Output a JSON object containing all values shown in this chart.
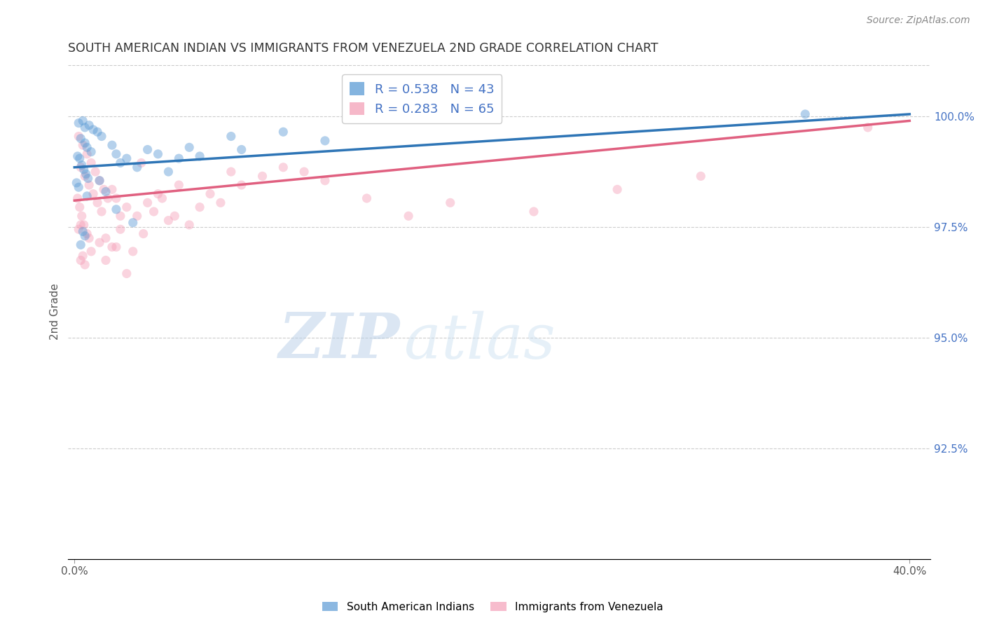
{
  "title": "SOUTH AMERICAN INDIAN VS IMMIGRANTS FROM VENEZUELA 2ND GRADE CORRELATION CHART",
  "source_text": "Source: ZipAtlas.com",
  "ylabel": "2nd Grade",
  "ymin": 90.0,
  "ymax": 101.2,
  "xmin": -0.3,
  "xmax": 41.0,
  "yticks": [
    92.5,
    95.0,
    97.5,
    100.0
  ],
  "ytick_labels": [
    "92.5%",
    "95.0%",
    "97.5%",
    "100.0%"
  ],
  "legend_entries": [
    {
      "label": "R = 0.538   N = 43",
      "color": "#6aa8d8"
    },
    {
      "label": "R = 0.283   N = 65",
      "color": "#f0a0b8"
    }
  ],
  "legend_labels_bottom": [
    "South American Indians",
    "Immigrants from Venezuela"
  ],
  "blue_scatter": [
    [
      0.2,
      99.85
    ],
    [
      0.4,
      99.9
    ],
    [
      0.5,
      99.75
    ],
    [
      0.7,
      99.8
    ],
    [
      0.9,
      99.7
    ],
    [
      1.1,
      99.65
    ],
    [
      1.3,
      99.55
    ],
    [
      0.3,
      99.5
    ],
    [
      0.5,
      99.4
    ],
    [
      0.6,
      99.3
    ],
    [
      0.8,
      99.2
    ],
    [
      0.15,
      99.1
    ],
    [
      0.25,
      99.05
    ],
    [
      0.35,
      98.9
    ],
    [
      0.45,
      98.8
    ],
    [
      0.55,
      98.7
    ],
    [
      0.65,
      98.6
    ],
    [
      0.1,
      98.5
    ],
    [
      1.8,
      99.35
    ],
    [
      2.0,
      99.15
    ],
    [
      2.2,
      98.95
    ],
    [
      2.5,
      99.05
    ],
    [
      3.0,
      98.85
    ],
    [
      3.5,
      99.25
    ],
    [
      4.0,
      99.15
    ],
    [
      4.5,
      98.75
    ],
    [
      5.0,
      99.05
    ],
    [
      5.5,
      99.3
    ],
    [
      6.0,
      99.1
    ],
    [
      1.5,
      98.3
    ],
    [
      2.0,
      97.9
    ],
    [
      2.8,
      97.6
    ],
    [
      0.4,
      97.4
    ],
    [
      7.5,
      99.55
    ],
    [
      8.0,
      99.25
    ],
    [
      0.3,
      97.1
    ],
    [
      0.5,
      97.3
    ],
    [
      10.0,
      99.65
    ],
    [
      12.0,
      99.45
    ],
    [
      35.0,
      100.05
    ],
    [
      0.2,
      98.4
    ],
    [
      0.6,
      98.2
    ],
    [
      1.2,
      98.55
    ]
  ],
  "pink_scatter": [
    [
      0.2,
      99.55
    ],
    [
      0.4,
      99.35
    ],
    [
      0.6,
      99.15
    ],
    [
      0.8,
      98.95
    ],
    [
      1.0,
      98.75
    ],
    [
      1.2,
      98.55
    ],
    [
      1.4,
      98.35
    ],
    [
      1.6,
      98.15
    ],
    [
      0.3,
      98.85
    ],
    [
      0.5,
      98.65
    ],
    [
      0.7,
      98.45
    ],
    [
      0.9,
      98.25
    ],
    [
      1.1,
      98.05
    ],
    [
      1.3,
      97.85
    ],
    [
      0.15,
      98.15
    ],
    [
      0.25,
      97.95
    ],
    [
      0.35,
      97.75
    ],
    [
      0.45,
      97.55
    ],
    [
      1.8,
      98.35
    ],
    [
      2.0,
      98.15
    ],
    [
      2.2,
      97.45
    ],
    [
      2.5,
      97.95
    ],
    [
      3.0,
      97.75
    ],
    [
      3.2,
      98.95
    ],
    [
      3.5,
      98.05
    ],
    [
      4.0,
      98.25
    ],
    [
      4.5,
      97.65
    ],
    [
      5.0,
      98.45
    ],
    [
      5.5,
      97.55
    ],
    [
      6.0,
      97.95
    ],
    [
      1.5,
      97.25
    ],
    [
      2.0,
      97.05
    ],
    [
      2.8,
      96.95
    ],
    [
      0.4,
      96.85
    ],
    [
      7.5,
      98.75
    ],
    [
      8.0,
      98.45
    ],
    [
      0.3,
      96.75
    ],
    [
      0.5,
      96.65
    ],
    [
      10.0,
      98.85
    ],
    [
      12.0,
      98.55
    ],
    [
      38.0,
      99.75
    ],
    [
      0.2,
      97.45
    ],
    [
      0.6,
      97.35
    ],
    [
      1.2,
      97.15
    ],
    [
      2.5,
      96.45
    ],
    [
      3.8,
      97.85
    ],
    [
      4.2,
      98.15
    ],
    [
      0.8,
      96.95
    ],
    [
      1.5,
      96.75
    ],
    [
      6.5,
      98.25
    ],
    [
      7.0,
      98.05
    ],
    [
      9.0,
      98.65
    ],
    [
      11.0,
      98.75
    ],
    [
      0.3,
      97.55
    ],
    [
      0.7,
      97.25
    ],
    [
      2.2,
      97.75
    ],
    [
      1.8,
      97.05
    ],
    [
      3.3,
      97.35
    ],
    [
      14.0,
      98.15
    ],
    [
      4.8,
      97.75
    ],
    [
      16.0,
      97.75
    ],
    [
      18.0,
      98.05
    ],
    [
      22.0,
      97.85
    ],
    [
      26.0,
      98.35
    ],
    [
      30.0,
      98.65
    ]
  ],
  "blue_line_x0": 0.0,
  "blue_line_y0": 98.85,
  "blue_line_x1": 40.0,
  "blue_line_y1": 100.05,
  "pink_line_x0": 0.0,
  "pink_line_y0": 98.1,
  "pink_line_x1": 40.0,
  "pink_line_y1": 99.9,
  "blue_color": "#5b9bd5",
  "pink_color": "#f4a0b8",
  "blue_line_color": "#2e75b6",
  "pink_line_color": "#e06080",
  "dot_size": 90,
  "dot_alpha": 0.45,
  "watermark_zip_color": "#b8cfe8",
  "watermark_atlas_color": "#c8d8e8",
  "background_color": "#ffffff",
  "grid_color": "#cccccc",
  "title_color": "#333333",
  "axis_label_color": "#555555",
  "source_color": "#888888",
  "right_axis_color": "#4472c4"
}
